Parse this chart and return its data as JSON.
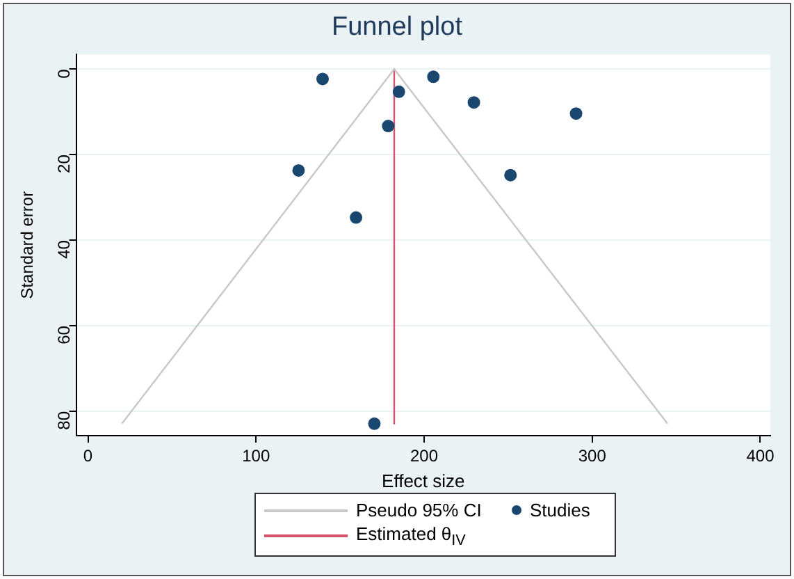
{
  "chart_data": {
    "type": "scatter",
    "title": "Funnel plot",
    "xlabel": "Effect size",
    "ylabel": "Standard error",
    "xlim": [
      -7,
      406
    ],
    "xticks": [
      0,
      100,
      200,
      300,
      400
    ],
    "ylim": [
      85.7,
      -3.4
    ],
    "yticks": [
      0,
      20,
      40,
      60,
      80
    ],
    "grid": "y",
    "legend": "bottom",
    "series": [
      {
        "name": "Pseudo 95% CI",
        "type": "line",
        "marker": "none",
        "color": "#c8c8c8",
        "x": [
          20.2,
          182.2,
          344.8
        ],
        "values": [
          82.9,
          0,
          82.9
        ]
      },
      {
        "name": "Studies",
        "type": "scatter",
        "marker": "circle",
        "color": "#1a476f",
        "x": [
          139.6,
          205.5,
          185,
          229.6,
          290.4,
          178.6,
          125.3,
          251.4,
          159.5,
          170.4
        ],
        "values": [
          2.3,
          1.8,
          5.3,
          7.8,
          10.4,
          13.3,
          23.7,
          24.8,
          34.7,
          82.9
        ]
      },
      {
        "name": "Estimated θ$_{IV}$",
        "type": "line",
        "marker": "none",
        "color": "#d9536f",
        "x": [
          182.2,
          182.2
        ],
        "values": [
          0,
          82.9
        ]
      }
    ]
  }
}
